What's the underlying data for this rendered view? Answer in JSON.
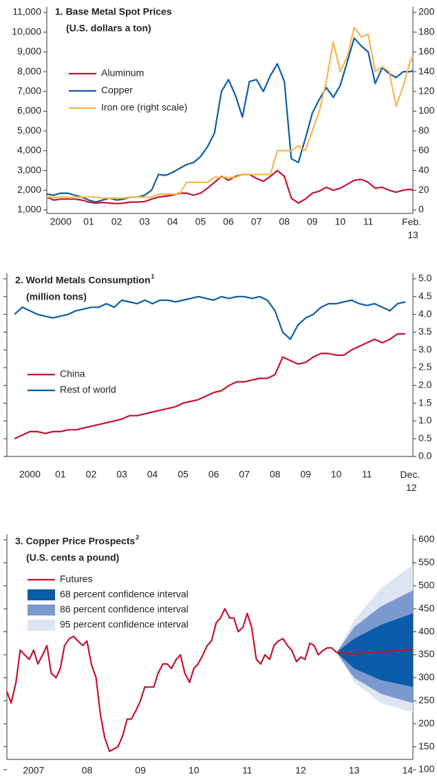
{
  "chart_data": [
    {
      "type": "line",
      "title": "1. Base Metal Spot Prices",
      "subtitle": "(U.S. dollars a ton)",
      "x": [
        2000,
        2000.25,
        2000.5,
        2000.75,
        2001,
        2001.25,
        2001.5,
        2001.75,
        2002,
        2002.25,
        2002.5,
        2002.75,
        2003,
        2003.25,
        2003.5,
        2003.75,
        2004,
        2004.25,
        2004.5,
        2004.75,
        2005,
        2005.25,
        2005.5,
        2005.75,
        2006,
        2006.25,
        2006.5,
        2006.75,
        2007,
        2007.25,
        2007.5,
        2007.75,
        2008,
        2008.25,
        2008.5,
        2008.75,
        2009,
        2009.25,
        2009.5,
        2009.75,
        2010,
        2010.25,
        2010.5,
        2010.75,
        2011,
        2011.25,
        2011.5,
        2011.75,
        2012,
        2012.25,
        2012.5,
        2012.75,
        2013,
        2013.1
      ],
      "xlim": [
        2000,
        2013.1
      ],
      "xticks": [
        {
          "value": 2000.5,
          "label": "2000"
        },
        {
          "value": 2001.5,
          "label": "01"
        },
        {
          "value": 2002.5,
          "label": "02"
        },
        {
          "value": 2003.5,
          "label": "03"
        },
        {
          "value": 2004.5,
          "label": "04"
        },
        {
          "value": 2005.5,
          "label": "05"
        },
        {
          "value": 2006.5,
          "label": "06"
        },
        {
          "value": 2007.5,
          "label": "07"
        },
        {
          "value": 2008.5,
          "label": "08"
        },
        {
          "value": 2009.5,
          "label": "09"
        },
        {
          "value": 2010.5,
          "label": "10"
        },
        {
          "value": 2011.5,
          "label": "11"
        },
        {
          "value": 2013.1,
          "label": "Feb. 13"
        }
      ],
      "ylim": [
        1000,
        11000
      ],
      "yticks": [
        {
          "value": 1000,
          "label": "1,000"
        },
        {
          "value": 2000,
          "label": "2,000"
        },
        {
          "value": 3000,
          "label": "3,000"
        },
        {
          "value": 4000,
          "label": "4,000"
        },
        {
          "value": 5000,
          "label": "5,000"
        },
        {
          "value": 6000,
          "label": "6,000"
        },
        {
          "value": 7000,
          "label": "7,000"
        },
        {
          "value": 8000,
          "label": "8,000"
        },
        {
          "value": 9000,
          "label": "9,000"
        },
        {
          "value": 10000,
          "label": "10,000"
        },
        {
          "value": 11000,
          "label": "11,000"
        }
      ],
      "y2lim": [
        0,
        200
      ],
      "y2ticks": [
        0,
        20,
        40,
        60,
        80,
        100,
        120,
        140,
        160,
        180,
        200
      ],
      "yaxis_position": "left",
      "series": [
        {
          "name": "Aluminum",
          "color": "#c41230",
          "values": [
            1650,
            1500,
            1550,
            1550,
            1550,
            1500,
            1400,
            1350,
            1380,
            1350,
            1320,
            1350,
            1400,
            1400,
            1420,
            1550,
            1650,
            1700,
            1750,
            1850,
            1850,
            1750,
            1850,
            2100,
            2400,
            2700,
            2500,
            2700,
            2800,
            2800,
            2600,
            2450,
            2700,
            3000,
            2700,
            1600,
            1350,
            1550,
            1850,
            1950,
            2150,
            2000,
            2100,
            2300,
            2500,
            2550,
            2400,
            2100,
            2150,
            2000,
            1900,
            2000,
            2050,
            2000
          ]
        },
        {
          "name": "Copper",
          "color": "#0a5ca8",
          "values": [
            1800,
            1750,
            1850,
            1850,
            1750,
            1650,
            1500,
            1400,
            1500,
            1600,
            1500,
            1550,
            1650,
            1650,
            1750,
            2000,
            2800,
            2750,
            2900,
            3100,
            3300,
            3400,
            3700,
            4200,
            4900,
            7000,
            7600,
            6800,
            5700,
            7500,
            7600,
            7000,
            7800,
            8400,
            7500,
            3600,
            3400,
            4600,
            5900,
            6600,
            7200,
            6700,
            7300,
            8500,
            9700,
            9300,
            9000,
            7400,
            8200,
            7900,
            7700,
            8000,
            8000,
            8050
          ]
        },
        {
          "name": "Iron ore (right scale)",
          "color": "#f8b74a",
          "axis": "y2",
          "values": [
            13,
            13,
            13,
            13,
            13,
            13,
            13,
            13,
            12,
            12,
            12,
            12,
            13,
            13,
            13,
            13,
            16,
            16,
            16,
            16,
            28,
            28,
            28,
            28,
            33,
            33,
            33,
            33,
            36,
            36,
            36,
            36,
            36,
            60,
            60,
            60,
            65,
            60,
            80,
            100,
            130,
            170,
            140,
            155,
            185,
            175,
            178,
            140,
            145,
            140,
            105,
            125,
            150,
            155
          ]
        }
      ]
    },
    {
      "type": "line",
      "title": "2. World Metals Consumption",
      "title_note": "1",
      "subtitle": "(million tons)",
      "x": [
        2000,
        2000.25,
        2000.5,
        2000.75,
        2001,
        2001.25,
        2001.5,
        2001.75,
        2002,
        2002.25,
        2002.5,
        2002.75,
        2003,
        2003.25,
        2003.5,
        2003.75,
        2004,
        2004.25,
        2004.5,
        2004.75,
        2005,
        2005.25,
        2005.5,
        2005.75,
        2006,
        2006.25,
        2006.5,
        2006.75,
        2007,
        2007.25,
        2007.5,
        2007.75,
        2008,
        2008.25,
        2008.5,
        2008.75,
        2009,
        2009.25,
        2009.5,
        2009.75,
        2010,
        2010.25,
        2010.5,
        2010.75,
        2011,
        2011.25,
        2011.5,
        2011.75,
        2012,
        2012.25,
        2012.5,
        2012.75
      ],
      "xlim": [
        1999.75,
        2013
      ],
      "xticks": [
        {
          "value": 2000.5,
          "label": "2000"
        },
        {
          "value": 2001.5,
          "label": "01"
        },
        {
          "value": 2002.5,
          "label": "02"
        },
        {
          "value": 2003.5,
          "label": "03"
        },
        {
          "value": 2004.5,
          "label": "04"
        },
        {
          "value": 2005.5,
          "label": "05"
        },
        {
          "value": 2006.5,
          "label": "06"
        },
        {
          "value": 2007.5,
          "label": "07"
        },
        {
          "value": 2008.5,
          "label": "08"
        },
        {
          "value": 2009.5,
          "label": "09"
        },
        {
          "value": 2010.5,
          "label": "10"
        },
        {
          "value": 2011.5,
          "label": "11"
        },
        {
          "value": 2012.95,
          "label": "Dec. 12"
        }
      ],
      "ylim": [
        0,
        5
      ],
      "yticks": [
        {
          "value": 0,
          "label": "0.0"
        },
        0.5,
        {
          "value": 1,
          "label": "1.0"
        },
        1.5,
        {
          "value": 2,
          "label": "2.0"
        },
        2.5,
        {
          "value": 3,
          "label": "3.0"
        },
        3.5,
        {
          "value": 4,
          "label": "4.0"
        },
        4.5,
        {
          "value": 5,
          "label": "5.0"
        }
      ],
      "yaxis_position": "right",
      "series": [
        {
          "name": "China",
          "color": "#c41230",
          "values": [
            0.5,
            0.6,
            0.7,
            0.7,
            0.65,
            0.7,
            0.7,
            0.75,
            0.75,
            0.8,
            0.85,
            0.9,
            0.95,
            1.0,
            1.05,
            1.15,
            1.15,
            1.2,
            1.25,
            1.3,
            1.35,
            1.4,
            1.5,
            1.55,
            1.6,
            1.7,
            1.8,
            1.85,
            2.0,
            2.1,
            2.1,
            2.15,
            2.2,
            2.2,
            2.3,
            2.8,
            2.7,
            2.6,
            2.65,
            2.8,
            2.9,
            2.9,
            2.85,
            2.85,
            3.0,
            3.1,
            3.2,
            3.3,
            3.2,
            3.3,
            3.45,
            3.45
          ]
        },
        {
          "name": "Rest of world",
          "color": "#0a5ca8",
          "values": [
            4.0,
            4.2,
            4.1,
            4.0,
            3.95,
            3.9,
            3.95,
            4.0,
            4.1,
            4.15,
            4.2,
            4.2,
            4.3,
            4.2,
            4.4,
            4.35,
            4.3,
            4.4,
            4.3,
            4.4,
            4.4,
            4.35,
            4.4,
            4.45,
            4.5,
            4.45,
            4.4,
            4.5,
            4.45,
            4.5,
            4.5,
            4.45,
            4.5,
            4.4,
            4.1,
            3.5,
            3.3,
            3.7,
            3.9,
            4.0,
            4.2,
            4.3,
            4.3,
            4.35,
            4.4,
            4.3,
            4.25,
            4.3,
            4.2,
            4.1,
            4.3,
            4.35
          ]
        }
      ]
    },
    {
      "type": "line",
      "title": "3. Copper Price Prospects",
      "title_note": "2",
      "subtitle": "(U.S. cents a pound)",
      "xlim": [
        2007,
        2014.6
      ],
      "xticks": [
        {
          "value": 2007.5,
          "label": "2007"
        },
        {
          "value": 2008.5,
          "label": "08"
        },
        {
          "value": 2009.5,
          "label": "09"
        },
        {
          "value": 2010.5,
          "label": "10"
        },
        {
          "value": 2011.5,
          "label": "11"
        },
        {
          "value": 2012.5,
          "label": "12"
        },
        {
          "value": 2013.5,
          "label": "13"
        },
        {
          "value": 2014.5,
          "label": "14"
        }
      ],
      "ylim": [
        100,
        600
      ],
      "yticks": [
        100,
        150,
        200,
        250,
        300,
        350,
        400,
        450,
        500,
        550,
        600
      ],
      "yaxis_position": "right",
      "series": [
        {
          "color": "#c41230",
          "x": [
            2007,
            2007.08,
            2007.17,
            2007.25,
            2007.33,
            2007.42,
            2007.5,
            2007.58,
            2007.67,
            2007.75,
            2007.83,
            2007.92,
            2008,
            2008.08,
            2008.17,
            2008.25,
            2008.33,
            2008.42,
            2008.5,
            2008.58,
            2008.67,
            2008.75,
            2008.83,
            2008.92,
            2009,
            2009.08,
            2009.17,
            2009.25,
            2009.33,
            2009.42,
            2009.5,
            2009.58,
            2009.67,
            2009.75,
            2009.83,
            2009.92,
            2010,
            2010.08,
            2010.17,
            2010.25,
            2010.33,
            2010.42,
            2010.5,
            2010.58,
            2010.67,
            2010.75,
            2010.83,
            2010.92,
            2011,
            2011.08,
            2011.17,
            2011.25,
            2011.33,
            2011.42,
            2011.5,
            2011.58,
            2011.67,
            2011.75,
            2011.83,
            2011.92,
            2012,
            2012.08,
            2012.17,
            2012.25,
            2012.33,
            2012.42,
            2012.5,
            2012.58,
            2012.67,
            2012.75,
            2012.83,
            2012.92,
            2013,
            2013.08,
            2013.17
          ],
          "values": [
            270,
            245,
            290,
            360,
            350,
            340,
            360,
            330,
            350,
            370,
            310,
            300,
            320,
            370,
            385,
            390,
            380,
            370,
            380,
            330,
            300,
            220,
            170,
            140,
            145,
            150,
            175,
            210,
            210,
            230,
            250,
            280,
            280,
            280,
            310,
            330,
            330,
            320,
            340,
            350,
            310,
            290,
            320,
            330,
            350,
            370,
            380,
            420,
            430,
            450,
            430,
            430,
            400,
            410,
            440,
            410,
            340,
            330,
            350,
            340,
            370,
            380,
            385,
            370,
            360,
            335,
            345,
            340,
            375,
            370,
            350,
            360,
            365,
            365,
            355
          ]
        },
        {
          "name": "Futures",
          "color": "#c41230",
          "x": [
            2013.17,
            2013.5,
            2014,
            2014.6
          ],
          "values": [
            355,
            352,
            356,
            362
          ]
        }
      ],
      "bands": [
        {
          "name": "68 percent confidence interval",
          "color": "#0a5ca8",
          "x": [
            2013.17,
            2013.5,
            2014,
            2014.6
          ],
          "lower": [
            355,
            320,
            295,
            280
          ],
          "upper": [
            355,
            385,
            415,
            440
          ]
        },
        {
          "name": "86 percent confidence interval",
          "color": "#7b98cf",
          "x": [
            2013.17,
            2013.5,
            2014,
            2014.6
          ],
          "lower": [
            355,
            300,
            265,
            245
          ],
          "upper": [
            355,
            410,
            455,
            490
          ]
        },
        {
          "name": "95 percent confidence interval",
          "color": "#dde5f3",
          "x": [
            2013.17,
            2013.5,
            2014,
            2014.6
          ],
          "lower": [
            355,
            290,
            245,
            225
          ],
          "upper": [
            355,
            425,
            495,
            545
          ]
        }
      ]
    }
  ]
}
